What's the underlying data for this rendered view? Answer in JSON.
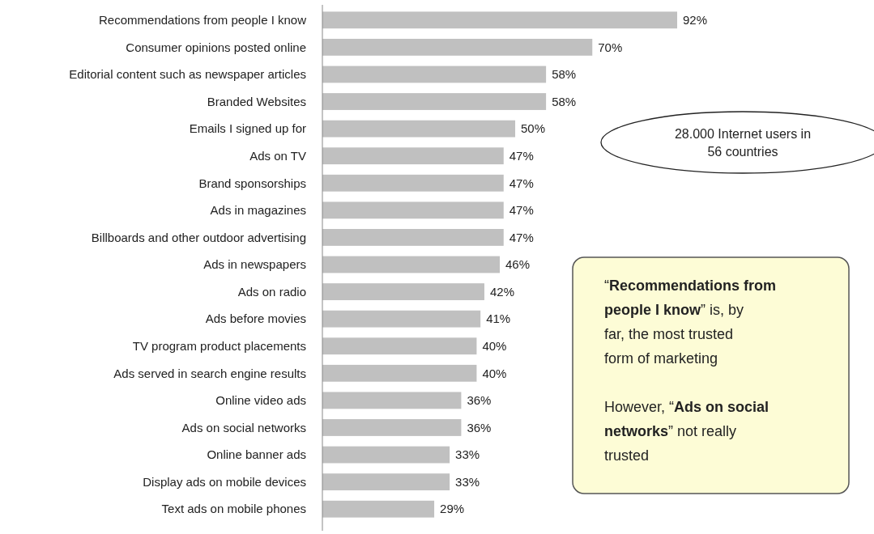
{
  "chart_data": {
    "type": "bar",
    "orientation": "horizontal",
    "relative": false,
    "data_labels": true,
    "categories": [
      "Recommendations from people I know",
      "Consumer opinions posted online",
      "Editorial content such as newspaper articles",
      "Branded Websites",
      "Emails I signed up for",
      "Ads on TV",
      "Brand sponsorships",
      "Ads in magazines",
      "Billboards and other outdoor advertising",
      "Ads in newspapers",
      "Ads on radio",
      "Ads before movies",
      "TV program product placements",
      "Ads served in search engine results",
      "Online video ads",
      "Ads on social networks",
      "Online banner ads",
      "Display ads on mobile devices",
      "Text ads on mobile phones"
    ],
    "values": [
      92,
      70,
      58,
      58,
      50,
      47,
      47,
      47,
      47,
      46,
      42,
      41,
      40,
      40,
      36,
      36,
      33,
      33,
      29
    ],
    "value_labels": [
      "92%",
      "70%",
      "58%",
      "58%",
      "50%",
      "47%",
      "47%",
      "47%",
      "47%",
      "46%",
      "42%",
      "41%",
      "40%",
      "40%",
      "36%",
      "36%",
      "33%",
      "33%",
      "29%"
    ],
    "color": "#c0c0c0",
    "annotations": [
      "28.000 Internet users in 56 countries",
      "“Recommendations from people I know” is, by far, the most trusted form of marketing",
      "However, “Ads on social networks” not really trusted"
    ]
  }
}
